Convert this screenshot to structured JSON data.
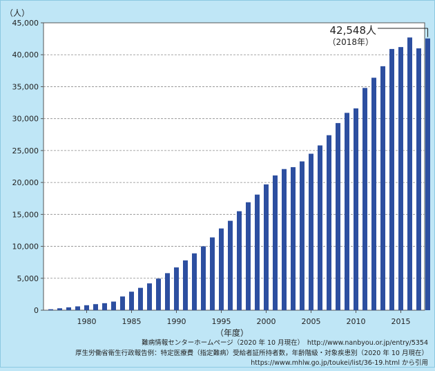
{
  "chart_data": {
    "type": "bar",
    "y_unit_label": "（人）",
    "x_unit_label": "（年度）",
    "ylim": [
      0,
      45000
    ],
    "y_ticks": [
      0,
      5000,
      10000,
      15000,
      20000,
      25000,
      30000,
      35000,
      40000,
      45000
    ],
    "y_tick_labels": [
      "0",
      "5,000",
      "10,000",
      "15,000",
      "20,000",
      "25,000",
      "30,000",
      "35,000",
      "40,000",
      "45,000"
    ],
    "x_tick_years": [
      1980,
      1985,
      1990,
      1995,
      2000,
      2005,
      2010,
      2015
    ],
    "x_tick_labels": [
      "1980",
      "1985",
      "1990",
      "1995",
      "2000",
      "2005",
      "2010",
      "2015"
    ],
    "bar_color": "#2d4fa0",
    "grid": true,
    "categories": [
      1976,
      1977,
      1978,
      1979,
      1980,
      1981,
      1982,
      1983,
      1984,
      1985,
      1986,
      1987,
      1988,
      1989,
      1990,
      1991,
      1992,
      1993,
      1994,
      1995,
      1996,
      1997,
      1998,
      1999,
      2000,
      2001,
      2002,
      2003,
      2004,
      2005,
      2006,
      2007,
      2008,
      2009,
      2010,
      2011,
      2012,
      2013,
      2014,
      2015,
      2016,
      2017,
      2018
    ],
    "values": [
      150,
      300,
      450,
      600,
      780,
      950,
      1100,
      1350,
      2150,
      2900,
      3500,
      4200,
      4950,
      5800,
      6700,
      7800,
      8900,
      10000,
      11400,
      12800,
      14000,
      15500,
      16900,
      18100,
      19700,
      21100,
      22100,
      22400,
      23300,
      24500,
      25800,
      27400,
      29300,
      30900,
      31600,
      34800,
      36400,
      38200,
      40900,
      41200,
      42700,
      41000,
      42548
    ],
    "annotation": {
      "value_label": "42,548人",
      "year_label": "（2018年）"
    }
  },
  "source": {
    "line1": "難病情報センターホームページ（2020 年 10 月現在）　http://www.nanbyou.or.jp/entry/5354",
    "line2": "厚生労働省衛生行政報告例：特定医療費（指定難病）受給者証所持者数，年齢階級・対象疾患別（2020 年 10 月現在）",
    "line3": "https://www.mhlw.go.jp/toukei/list/36-19.html から引用"
  }
}
